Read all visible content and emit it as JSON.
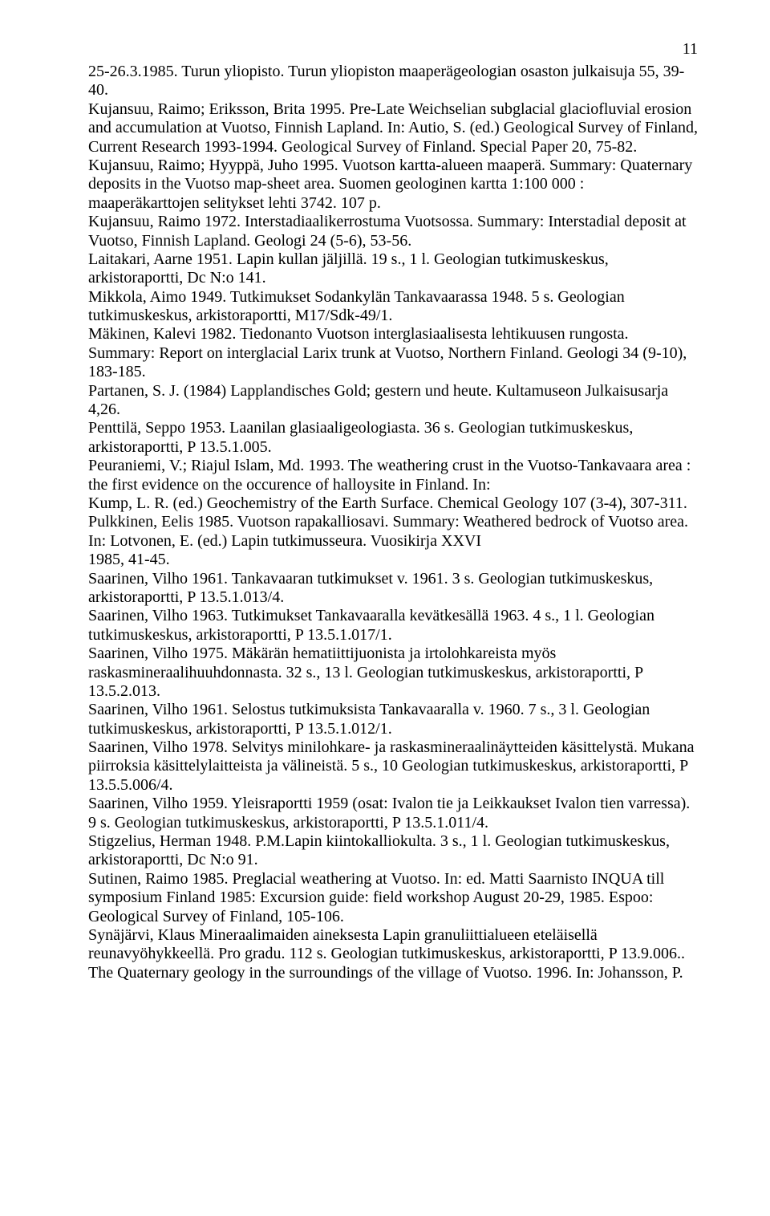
{
  "page_number": "11",
  "references": [
    "25-26.3.1985. Turun yliopisto. Turun yliopiston maaperägeologian osaston julkaisuja 55, 39-40.",
    "Kujansuu, Raimo; Eriksson, Brita 1995. Pre-Late Weichselian subglacial glaciofluvial erosion and accumulation at Vuotso, Finnish Lapland. In: Autio, S. (ed.) Geological Survey of Finland, Current Research 1993-1994. Geological Survey of Finland. Special Paper 20, 75-82.",
    "Kujansuu, Raimo; Hyyppä, Juho 1995. Vuotson kartta-alueen maaperä. Summary: Quaternary deposits in the Vuotso map-sheet area. Suomen geologinen kartta 1:100 000 : maaperäkarttojen selitykset lehti 3742. 107 p.",
    "Kujansuu, Raimo 1972. Interstadiaalikerrostuma Vuotsossa. Summary: Interstadial deposit at Vuotso, Finnish Lapland. Geologi 24 (5-6), 53-56.",
    "Laitakari, Aarne 1951. Lapin kullan jäljillä. 19 s., 1 l. Geologian tutkimuskeskus, arkistoraportti, Dc N:o 141.",
    "Mikkola, Aimo 1949. Tutkimukset Sodankylän Tankavaarassa 1948. 5 s. Geologian tutkimuskeskus, arkistoraportti, M17/Sdk-49/1.",
    "Mäkinen, Kalevi 1982. Tiedonanto Vuotson interglasiaalisesta lehtikuusen rungosta. Summary: Report on interglacial Larix trunk at Vuotso, Northern Finland. Geologi 34 (9-10), 183-185.",
    "Partanen, S. J. (1984) Lapplandisches Gold; gestern und heute. Kultamuseon Julkaisusarja 4,26.",
    "Penttilä, Seppo 1953. Laanilan glasiaaligeologiasta. 36 s. Geologian tutkimuskeskus, arkistoraportti, P 13.5.1.005.",
    "Peuraniemi, V.; Riajul Islam, Md. 1993. The weathering crust in the Vuotso-Tankavaara area : the first evidence on the occurence of halloysite in Finland. In:",
    "Kump, L. R. (ed.) Geochemistry of the Earth Surface. Chemical Geology 107 (3-4), 307-311.",
    "Pulkkinen, Eelis 1985. Vuotson rapakalliosavi. Summary: Weathered bedrock of Vuotso area. In: Lotvonen, E. (ed.) Lapin tutkimusseura. Vuosikirja XXVI",
    "1985, 41-45.",
    "Saarinen, Vilho 1961. Tankavaaran tutkimukset v. 1961. 3 s. Geologian tutkimuskeskus, arkistoraportti, P 13.5.1.013/4.",
    "Saarinen, Vilho 1963. Tutkimukset Tankavaaralla kevätkesällä 1963. 4 s., 1 l. Geologian tutkimuskeskus, arkistoraportti, P 13.5.1.017/1.",
    "Saarinen, Vilho 1975. Mäkärän hematiittijuonista ja irtolohkareista myös raskasmineraalihuuhdonnasta. 32 s., 13 l. Geologian tutkimuskeskus, arkistoraportti, P 13.5.2.013.",
    "Saarinen, Vilho 1961. Selostus tutkimuksista Tankavaaralla v. 1960. 7 s., 3 l. Geologian tutkimuskeskus, arkistoraportti, P 13.5.1.012/1.",
    "Saarinen, Vilho 1978. Selvitys minilohkare- ja raskasmineraalinäytteiden käsittelystä. Mukana piirroksia käsittelylaitteista ja välineistä. 5 s., 10 Geologian tutkimuskeskus, arkistoraportti, P 13.5.5.006/4.",
    "Saarinen, Vilho 1959. Yleisraportti 1959 (osat: Ivalon tie ja Leikkaukset Ivalon tien varressa). 9 s. Geologian tutkimuskeskus, arkistoraportti, P 13.5.1.011/4.",
    "Stigzelius, Herman 1948. P.M.Lapin kiintokalliokulta. 3 s., 1 l. Geologian tutkimuskeskus, arkistoraportti, Dc N:o 91.",
    "Sutinen, Raimo 1985. Preglacial weathering at Vuotso. In: ed. Matti Saarnisto INQUA till symposium Finland 1985: Excursion guide: field workshop August 20-29, 1985. Espoo: Geological Survey of Finland, 105-106.",
    "Synäjärvi, Klaus Mineraalimaiden aineksesta Lapin granuliittialueen eteläisellä reunavyöhykkeellä. Pro gradu. 112 s. Geologian tutkimuskeskus, arkistoraportti, P 13.9.006..",
    "The Quaternary geology in the surroundings of the village of Vuotso. 1996. In: Johansson, P."
  ]
}
